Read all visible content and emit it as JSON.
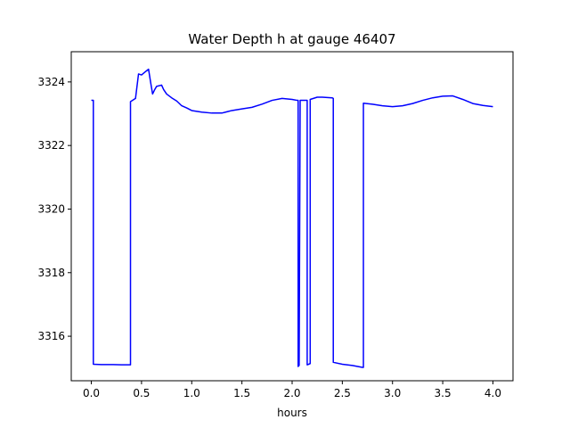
{
  "chart_data": {
    "type": "line",
    "title": "Water Depth h at gauge 46407",
    "xlabel": "hours",
    "ylabel": "",
    "xlim": [
      -0.2,
      4.2
    ],
    "ylim": [
      3314.6,
      3324.95
    ],
    "xticks": [
      0.0,
      0.5,
      1.0,
      1.5,
      2.0,
      2.5,
      3.0,
      3.5,
      4.0
    ],
    "xtick_labels": [
      "0.0",
      "0.5",
      "1.0",
      "1.5",
      "2.0",
      "2.5",
      "3.0",
      "3.5",
      "4.0"
    ],
    "yticks": [
      3316,
      3318,
      3320,
      3322,
      3324
    ],
    "ytick_labels": [
      "3316",
      "3318",
      "3320",
      "3322",
      "3324"
    ],
    "grid": false,
    "series": [
      {
        "color": "#0000ff",
        "x": [
          0.0,
          0.02,
          0.02,
          0.1,
          0.2,
          0.3,
          0.39,
          0.39,
          0.44,
          0.47,
          0.5,
          0.53,
          0.57,
          0.59,
          0.61,
          0.63,
          0.65,
          0.7,
          0.72,
          0.75,
          0.8,
          0.85,
          0.9,
          0.95,
          1.0,
          1.1,
          1.2,
          1.3,
          1.4,
          1.5,
          1.6,
          1.7,
          1.8,
          1.9,
          2.0,
          2.05,
          2.06,
          2.06,
          2.07,
          2.08,
          2.08,
          2.15,
          2.15,
          2.18,
          2.18,
          2.25,
          2.3,
          2.4,
          2.41,
          2.41,
          2.5,
          2.6,
          2.7,
          2.71,
          2.71,
          2.8,
          2.9,
          3.0,
          3.1,
          3.2,
          3.3,
          3.4,
          3.5,
          3.6,
          3.7,
          3.8,
          3.9,
          4.0
        ],
        "y": [
          3323.42,
          3323.42,
          3315.12,
          3315.11,
          3315.11,
          3315.1,
          3315.1,
          3323.38,
          3323.48,
          3324.25,
          3324.22,
          3324.3,
          3324.4,
          3324.0,
          3323.62,
          3323.75,
          3323.86,
          3323.9,
          3323.76,
          3323.62,
          3323.5,
          3323.4,
          3323.25,
          3323.18,
          3323.1,
          3323.05,
          3323.02,
          3323.02,
          3323.1,
          3323.15,
          3323.2,
          3323.3,
          3323.42,
          3323.48,
          3323.45,
          3323.42,
          3323.42,
          3315.05,
          3315.08,
          3323.38,
          3323.42,
          3323.42,
          3315.1,
          3315.14,
          3323.45,
          3323.52,
          3323.52,
          3323.5,
          3323.48,
          3315.18,
          3315.12,
          3315.08,
          3315.02,
          3315.02,
          3323.33,
          3323.3,
          3323.25,
          3323.22,
          3323.25,
          3323.32,
          3323.42,
          3323.5,
          3323.55,
          3323.56,
          3323.45,
          3323.32,
          3323.26,
          3323.22
        ]
      }
    ]
  }
}
